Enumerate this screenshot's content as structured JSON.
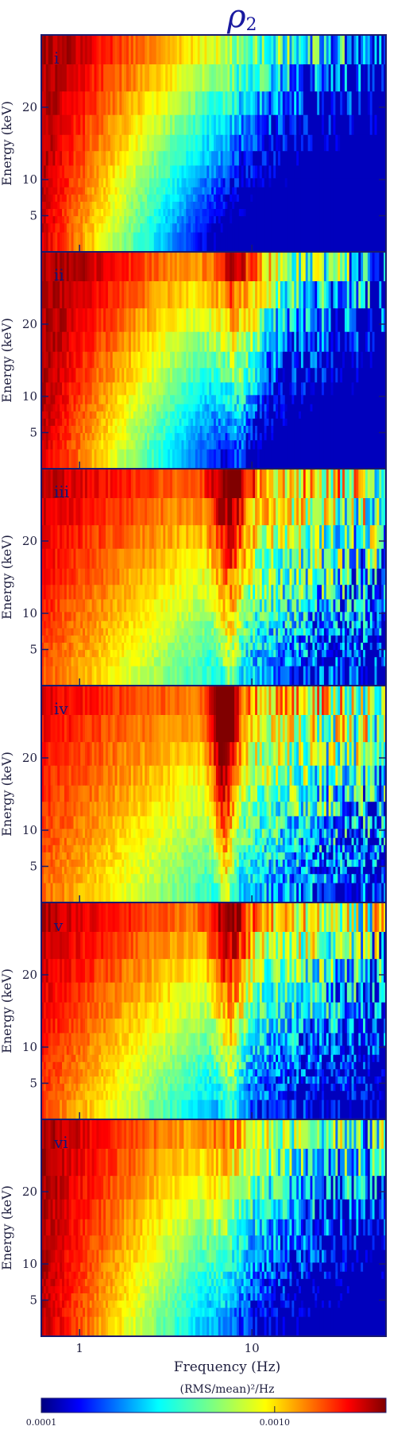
{
  "chart_data": {
    "type": "heatmap",
    "title": "ρ",
    "title_subscript": "2",
    "panels": [
      "i",
      "ii",
      "iii",
      "iv",
      "v",
      "vi"
    ],
    "xlabel": "Frequency (Hz)",
    "ylabel": "Energy (keV)",
    "x_scale": "log",
    "xlim": [
      0.6,
      60
    ],
    "x_ticks": [
      {
        "value": 1,
        "label": "1"
      },
      {
        "value": 10,
        "label": "10"
      }
    ],
    "ylim": [
      0,
      30
    ],
    "y_ticks": [
      {
        "value": 5,
        "label": "5"
      },
      {
        "value": 10,
        "label": "10"
      },
      {
        "value": 20,
        "label": "20"
      }
    ],
    "energy_bins_kev": [
      2,
      3.5,
      4.5,
      5.5,
      6.5,
      7.5,
      8.5,
      9.5,
      11,
      13,
      15,
      17.5,
      20.5,
      24,
      28
    ],
    "peak_frequency_hz": [
      null,
      8.5,
      7.5,
      7,
      7.5,
      7
    ],
    "colorbar": {
      "label": "(RMS/mean)²/Hz",
      "scale": "log",
      "range": [
        0.0001,
        0.003
      ],
      "ticks": [
        {
          "value": 0.0001,
          "label": "0.0001"
        },
        {
          "value": 0.001,
          "label": "0.0010"
        }
      ],
      "colormap": "jet"
    },
    "colors": {
      "frame": "#1a1a6e",
      "title": "#1a1aa0"
    }
  }
}
